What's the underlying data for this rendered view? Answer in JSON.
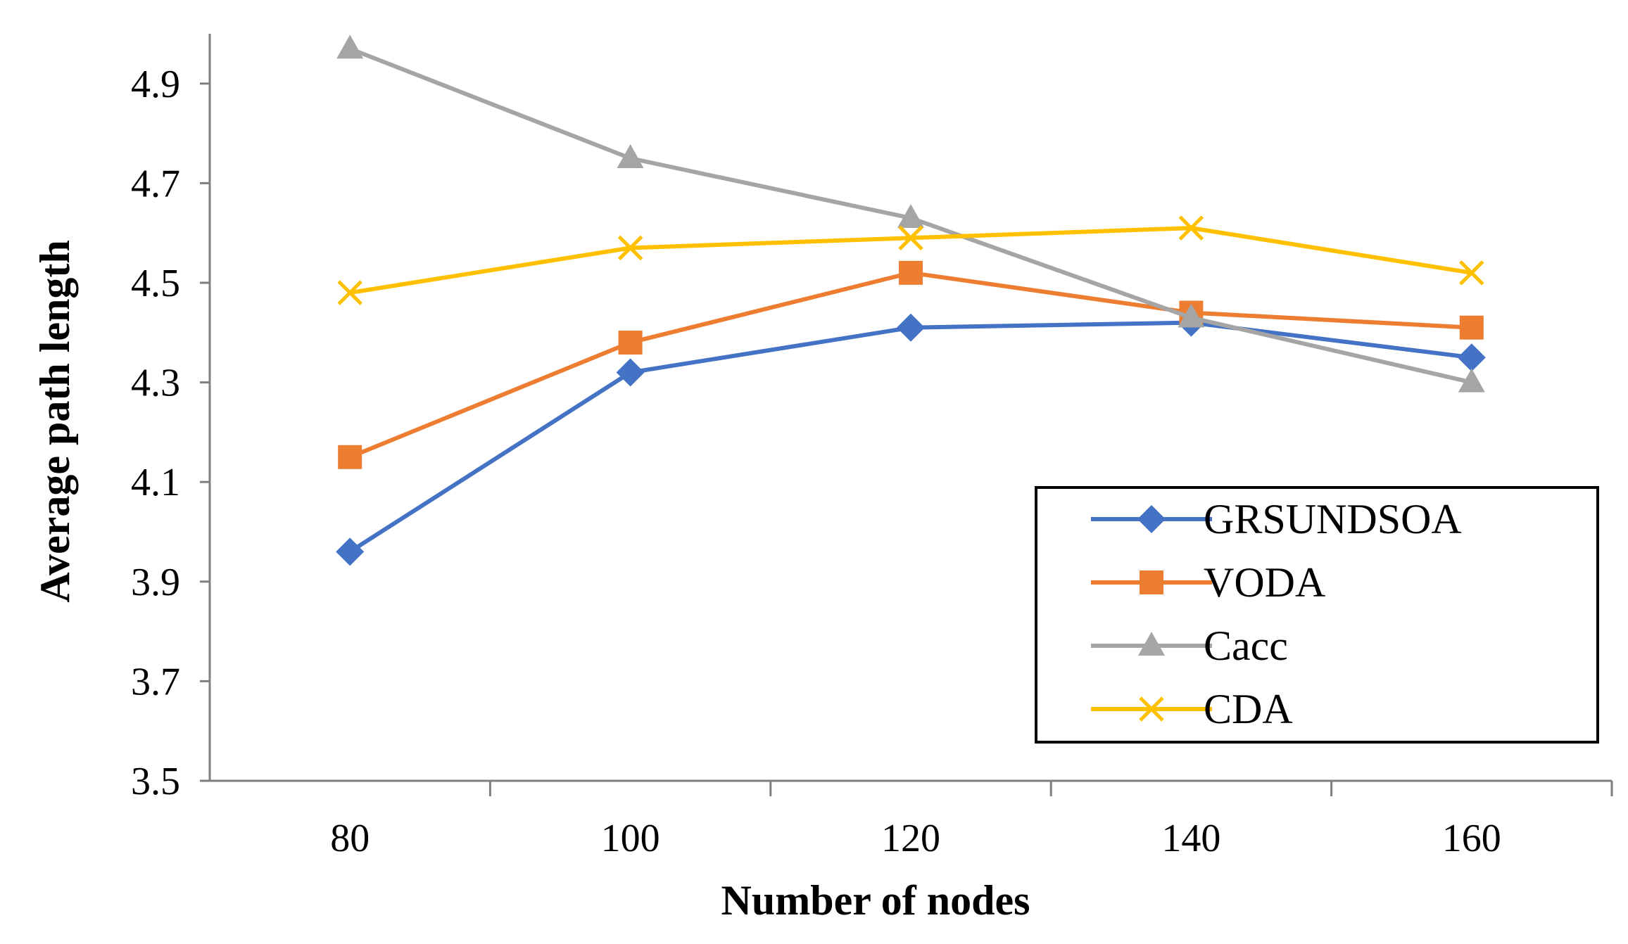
{
  "chart_data": {
    "type": "line",
    "title": "",
    "xlabel": "Number of nodes",
    "ylabel": "Average path length",
    "x": [
      80,
      100,
      120,
      140,
      160
    ],
    "x_tick_labels": [
      "80",
      "100",
      "120",
      "140",
      "160"
    ],
    "xlim": [
      70,
      170
    ],
    "ylim": [
      3.5,
      5.0
    ],
    "y_ticks": [
      3.5,
      3.7,
      3.9,
      4.1,
      4.3,
      4.5,
      4.7,
      4.9
    ],
    "y_tick_labels": [
      "3.5",
      "3.7",
      "3.9",
      "4.1",
      "4.3",
      "4.5",
      "4.7",
      "4.9"
    ],
    "grid": false,
    "legend_position": "lower-right",
    "series": [
      {
        "name": "GRSUNDSOA",
        "values": [
          3.96,
          4.32,
          4.41,
          4.42,
          4.35
        ],
        "color": "#4472c4",
        "marker": "diamond"
      },
      {
        "name": "VODA",
        "values": [
          4.15,
          4.38,
          4.52,
          4.44,
          4.41
        ],
        "color": "#ed7d31",
        "marker": "square"
      },
      {
        "name": "Cacc",
        "values": [
          4.97,
          4.75,
          4.63,
          4.43,
          4.3
        ],
        "color": "#a5a5a5",
        "marker": "triangle"
      },
      {
        "name": "CDA",
        "values": [
          4.48,
          4.57,
          4.59,
          4.61,
          4.52
        ],
        "color": "#ffc000",
        "marker": "x"
      }
    ]
  }
}
